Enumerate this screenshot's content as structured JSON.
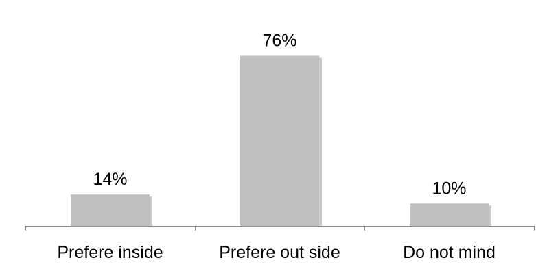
{
  "chart_data": {
    "type": "bar",
    "categories": [
      "Prefere inside",
      "Prefere out side",
      "Do not mind"
    ],
    "values": [
      14,
      76,
      10
    ],
    "data_labels": [
      "14%",
      "76%",
      "10%"
    ],
    "unit": "%",
    "title": "",
    "xlabel": "",
    "ylabel": "",
    "ylim": [
      0,
      100
    ],
    "grid": false,
    "legend": "none",
    "colors": {
      "bar": "#c0c0c0",
      "shadow": "#8a8a8a",
      "axis": "#8c8c8c",
      "text": "#000000"
    }
  }
}
